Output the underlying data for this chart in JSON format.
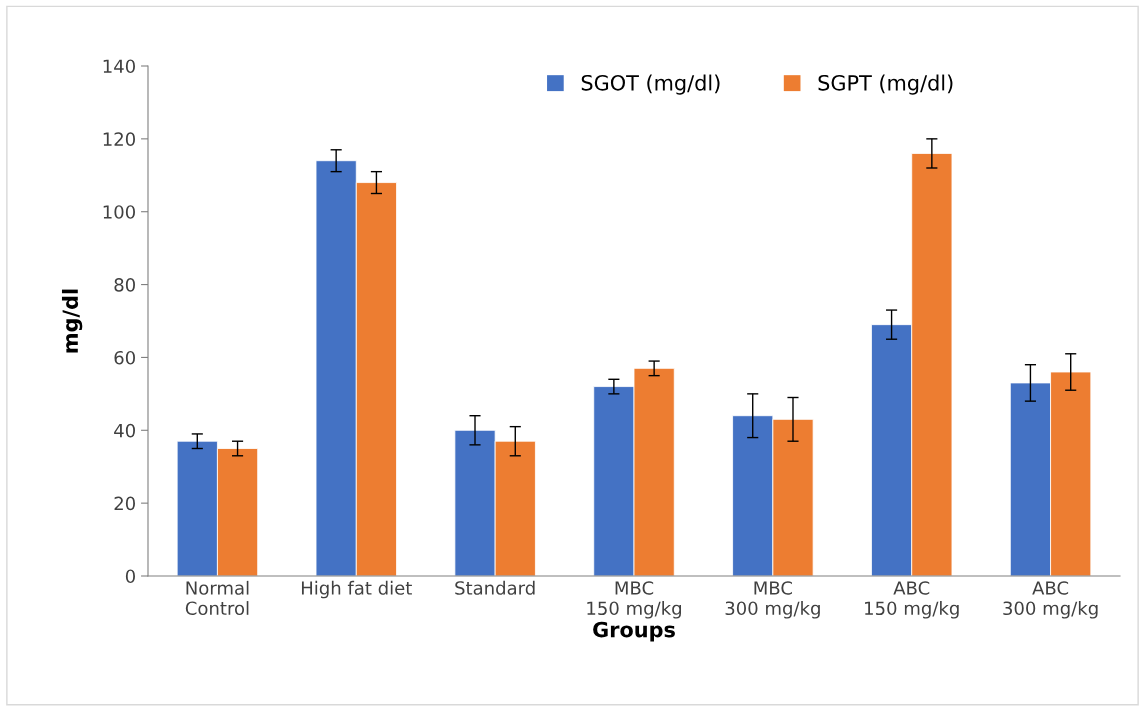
{
  "chart_data": {
    "type": "bar",
    "xlabel": "Groups",
    "ylabel": "mg/dl",
    "categories": [
      "Normal\nControl",
      "High fat diet",
      "Standard",
      "MBC\n150 mg/kg",
      "MBC\n300 mg/kg",
      "ABC\n150 mg/kg",
      "ABC\n300 mg/kg"
    ],
    "series": [
      {
        "name": "SGOT (mg/dl)",
        "color": "#4472c4",
        "values": [
          37,
          114,
          40,
          52,
          44,
          69,
          53
        ],
        "errors": [
          2,
          3,
          4,
          2,
          6,
          4,
          5
        ]
      },
      {
        "name": "SGPT (mg/dl)",
        "color": "#ed7d31",
        "values": [
          35,
          108,
          37,
          57,
          43,
          116,
          56
        ],
        "errors": [
          2,
          3,
          4,
          2,
          6,
          4,
          5
        ]
      }
    ],
    "ylim": [
      0,
      140
    ],
    "yticks": [
      0,
      20,
      40,
      60,
      80,
      100,
      120,
      140
    ],
    "grid": false,
    "legend": "top"
  }
}
